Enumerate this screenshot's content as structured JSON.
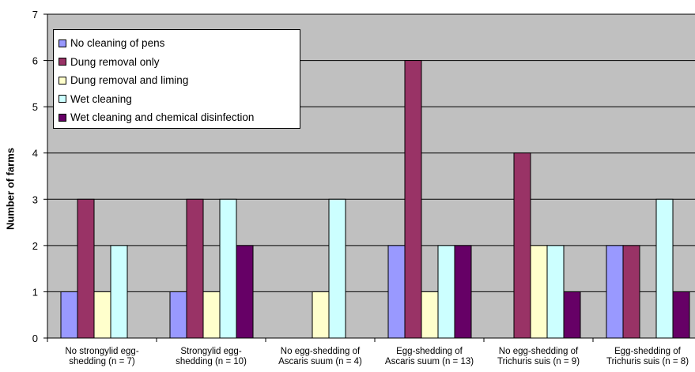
{
  "chart_data": {
    "type": "bar",
    "ylabel": "Number of farms",
    "xlabel": "",
    "ylim": [
      0,
      7
    ],
    "yticks": [
      "0",
      "1",
      "2",
      "3",
      "4",
      "5",
      "6",
      "7"
    ],
    "grid": true,
    "legend_position": "top-left",
    "categories": [
      [
        "No strongylid egg-",
        "shedding (n = 7)"
      ],
      [
        "Strongylid egg-",
        "shedding (n = 10)"
      ],
      [
        "No egg-shedding of",
        "Ascaris suum (n = 4)"
      ],
      [
        "Egg-shedding of",
        "Ascaris suum (n = 13)"
      ],
      [
        "No egg-shedding of",
        "Trichuris suis (n = 9)"
      ],
      [
        "Egg-shedding of",
        "Trichuris suis (n = 8)"
      ]
    ],
    "series": [
      {
        "name": "No cleaning of pens",
        "color": "#9999ff",
        "values": [
          1,
          1,
          0,
          2,
          0,
          2
        ]
      },
      {
        "name": "Dung removal only",
        "color": "#993366",
        "values": [
          3,
          3,
          0,
          6,
          4,
          2
        ]
      },
      {
        "name": "Dung removal and liming",
        "color": "#ffffcc",
        "values": [
          1,
          1,
          1,
          1,
          2,
          0
        ]
      },
      {
        "name": "Wet cleaning",
        "color": "#ccffff",
        "values": [
          2,
          3,
          3,
          2,
          2,
          3
        ]
      },
      {
        "name": "Wet cleaning and chemical disinfection",
        "color": "#660066",
        "values": [
          0,
          2,
          0,
          2,
          1,
          1
        ]
      }
    ],
    "plot_background": "#c0c0c0"
  }
}
